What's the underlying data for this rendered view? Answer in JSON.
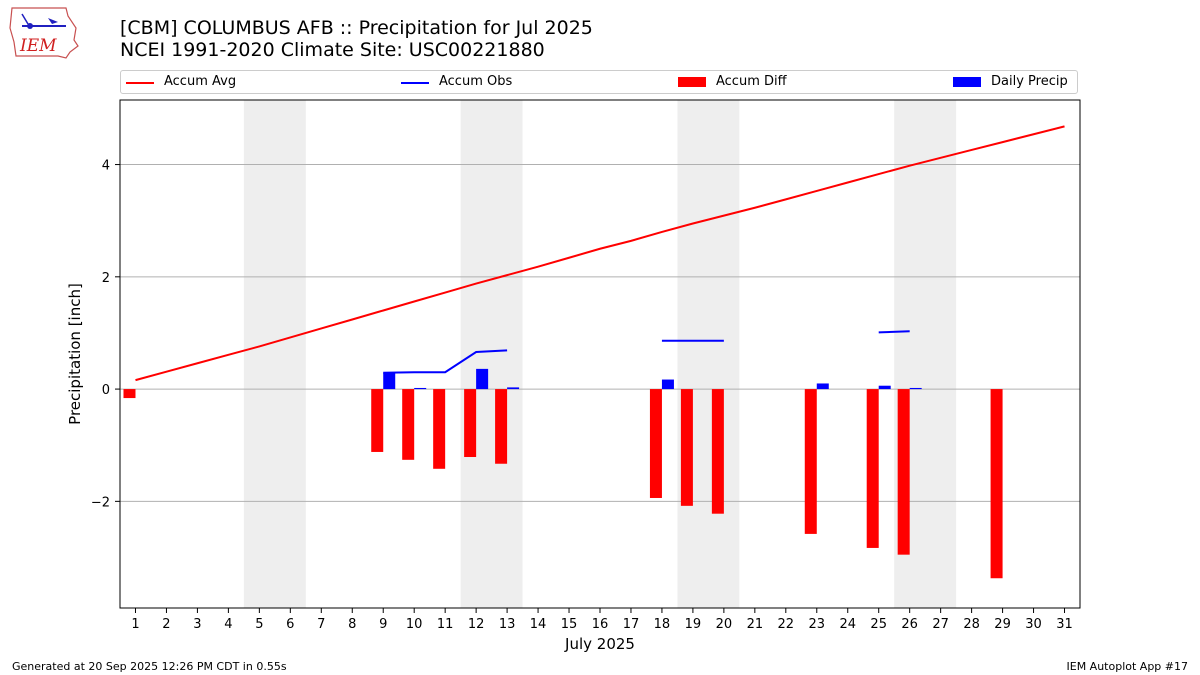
{
  "header": {
    "title_line1": "[CBM] COLUMBUS AFB :: Precipitation for Jul 2025",
    "title_line2": "NCEI 1991-2020 Climate Site: USC00221880"
  },
  "logo": {
    "text": "IEM",
    "icon": "iem-iowa-logo-icon"
  },
  "footer": {
    "left": "Generated at 20 Sep 2025 12:26 PM CDT in 0.55s",
    "right": "IEM Autoplot App #17"
  },
  "colors": {
    "avg": "#ff0000",
    "obs": "#0000ff",
    "diff": "#ff0000",
    "daily": "#0000ff",
    "weekend": "#eeeeee",
    "grid": "#b0b0b0"
  },
  "chart_data": {
    "type": "bar",
    "xlabel": "July 2025",
    "ylabel": "Precipitation [inch]",
    "xlim": [
      0.5,
      31.5
    ],
    "ylim": [
      -3.9,
      5.15
    ],
    "yticks": [
      -2,
      0,
      2,
      4
    ],
    "ytick_labels": [
      "−2",
      "0",
      "2",
      "4"
    ],
    "grid": "horizontal",
    "legend_placement": "top",
    "days": [
      1,
      2,
      3,
      4,
      5,
      6,
      7,
      8,
      9,
      10,
      11,
      12,
      13,
      14,
      15,
      16,
      17,
      18,
      19,
      20,
      21,
      22,
      23,
      24,
      25,
      26,
      27,
      28,
      29,
      30,
      31
    ],
    "weekend_spans": [
      [
        5,
        6
      ],
      [
        12,
        13
      ],
      [
        19,
        20
      ],
      [
        26,
        27
      ]
    ],
    "series": [
      {
        "name": "Accum Avg",
        "kind": "line",
        "x": [
          1,
          2,
          3,
          4,
          5,
          6,
          7,
          8,
          9,
          10,
          11,
          12,
          13,
          14,
          15,
          16,
          17,
          18,
          19,
          20,
          21,
          22,
          23,
          24,
          25,
          26,
          27,
          28,
          29,
          30,
          31
        ],
        "values": [
          0.16,
          0.31,
          0.46,
          0.61,
          0.76,
          0.92,
          1.08,
          1.24,
          1.4,
          1.56,
          1.72,
          1.88,
          2.03,
          2.18,
          2.34,
          2.5,
          2.64,
          2.8,
          2.95,
          3.09,
          3.23,
          3.38,
          3.53,
          3.68,
          3.83,
          3.98,
          4.12,
          4.26,
          4.4,
          4.54,
          4.68
        ]
      },
      {
        "name": "Accum Obs",
        "kind": "line",
        "segments": [
          {
            "x": [
              9,
              10,
              11,
              12,
              13
            ],
            "values": [
              0.29,
              0.3,
              0.3,
              0.66,
              0.69
            ]
          },
          {
            "x": [
              18,
              19,
              20
            ],
            "values": [
              0.86,
              0.86,
              0.86
            ]
          },
          {
            "x": [
              25,
              26
            ],
            "values": [
              1.01,
              1.03
            ]
          }
        ]
      },
      {
        "name": "Accum Diff",
        "kind": "bar",
        "x": [
          1,
          9,
          10,
          11,
          12,
          13,
          18,
          19,
          20,
          23,
          25,
          26,
          29
        ],
        "values": [
          -0.16,
          -1.12,
          -1.26,
          -1.42,
          -1.21,
          -1.33,
          -1.94,
          -2.08,
          -2.22,
          -2.58,
          -2.83,
          -2.95,
          -3.37
        ]
      },
      {
        "name": "Daily Precip",
        "kind": "bar",
        "x": [
          9,
          10,
          12,
          13,
          18,
          23,
          25,
          26
        ],
        "values": [
          0.29,
          0.02,
          0.36,
          0.03,
          0.17,
          0.1,
          0.06,
          0.02
        ]
      }
    ]
  }
}
